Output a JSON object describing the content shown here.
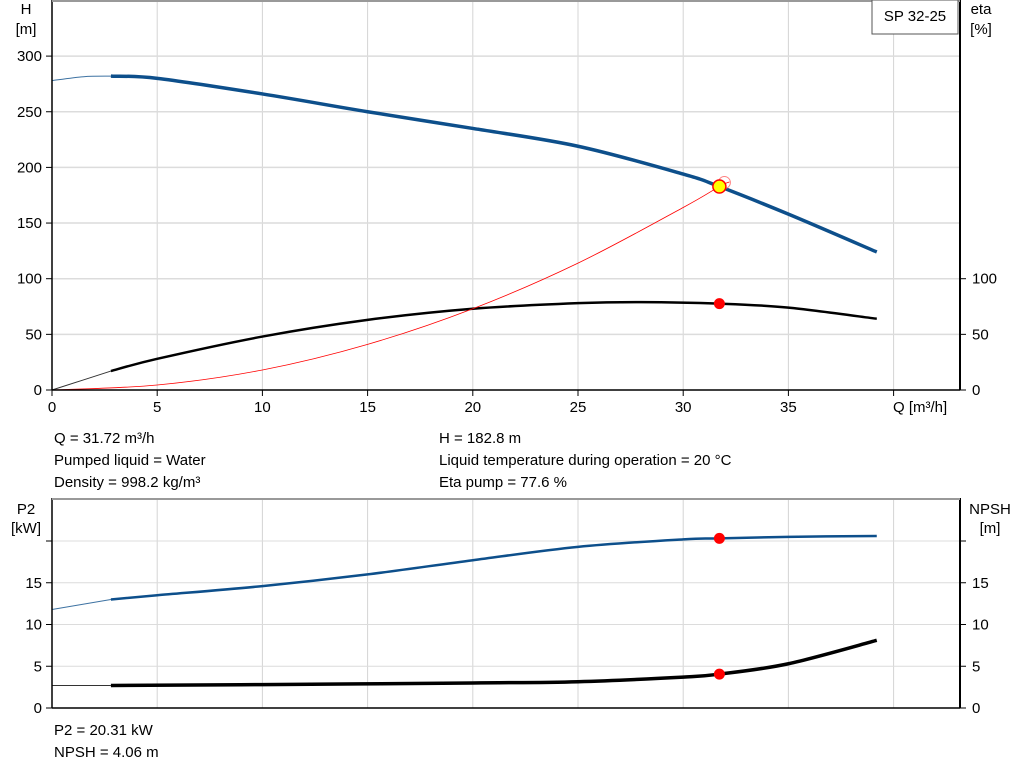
{
  "chart_data": [
    {
      "type": "line",
      "title": "SP 32-25",
      "xlabel": "Q [m³/h]",
      "ylabel": "H",
      "ylabel_unit": "[m]",
      "y2label": "eta",
      "y2label_unit": "[%]",
      "xlim": [
        0,
        43
      ],
      "ylim": [
        0,
        350
      ],
      "y2lim": [
        0,
        350
      ],
      "x_ticks": [
        "0",
        "5",
        "10",
        "15",
        "20",
        "25",
        "30",
        "35"
      ],
      "y_ticks": [
        "0",
        "50",
        "100",
        "150",
        "200",
        "250",
        "300"
      ],
      "y2_ticks": [
        "0",
        "50",
        "100"
      ],
      "grid": true,
      "series": [
        {
          "key": "H",
          "color": "#0d4f8b",
          "x": [
            0,
            1.5,
            2.8,
            5,
            10,
            15,
            20,
            25,
            30,
            31.72,
            35,
            39.2
          ],
          "y": [
            278,
            281.5,
            282,
            280,
            266,
            250,
            235,
            219,
            194,
            182.8,
            158,
            124
          ],
          "thick_from": 2.8
        },
        {
          "key": "eta",
          "color": "#000000",
          "x": [
            0,
            2.8,
            5,
            10,
            15,
            20,
            25,
            28,
            31.72,
            35,
            39.2
          ],
          "y": [
            0,
            17,
            28,
            48,
            63,
            73,
            78,
            79,
            77.6,
            74,
            64
          ],
          "thick_from": 2.8
        },
        {
          "key": "system",
          "color": "#ff0000",
          "x": [
            0,
            5,
            10,
            15,
            20,
            25,
            30,
            31.72,
            32.2
          ],
          "y": [
            0,
            4.5,
            18,
            41,
            73,
            114,
            164,
            182.8,
            187
          ]
        }
      ],
      "operating_points": [
        {
          "x": 31.72,
          "y": 182.8,
          "color": "#ffff00",
          "stroke": "#ff0000"
        },
        {
          "x": 31.72,
          "y": 77.6,
          "color": "#ff0000"
        }
      ]
    },
    {
      "type": "line",
      "ylabel": "P2",
      "ylabel_unit": "[kW]",
      "y2label": "NPSH",
      "y2label_unit": "[m]",
      "xlim": [
        0,
        43
      ],
      "ylim": [
        0,
        25
      ],
      "y_ticks": [
        "0",
        "5",
        "10",
        "15"
      ],
      "y2_ticks": [
        "0",
        "5",
        "10",
        "15"
      ],
      "grid": true,
      "series": [
        {
          "key": "P2",
          "color": "#0d4f8b",
          "x": [
            0,
            2.8,
            5,
            10,
            15,
            20,
            25,
            30,
            31.72,
            35,
            39.2
          ],
          "y": [
            11.8,
            13,
            13.5,
            14.6,
            16,
            17.7,
            19.3,
            20.2,
            20.31,
            20.5,
            20.6
          ],
          "thick_from": 2.8
        },
        {
          "key": "NPSH",
          "color": "#000000",
          "x": [
            0,
            2.8,
            10,
            20,
            25,
            30,
            31.72,
            35,
            39.2
          ],
          "y": [
            2.7,
            2.7,
            2.8,
            3.0,
            3.15,
            3.7,
            4.06,
            5.3,
            8.1
          ],
          "thick_from": 2.8
        }
      ],
      "operating_points": [
        {
          "x": 31.72,
          "y": 20.31,
          "color": "#ff0000"
        },
        {
          "x": 31.72,
          "y": 4.06,
          "color": "#ff0000"
        }
      ]
    }
  ],
  "info_top": {
    "q": "Q = 31.72 m³/h",
    "liquid": "Pumped liquid = Water",
    "density": "Density = 998.2 kg/m³",
    "h": "H = 182.8 m",
    "temp": "Liquid temperature during operation = 20 °C",
    "eta": "Eta pump = 77.6 %"
  },
  "info_bottom": {
    "p2": "P2 = 20.31 kW",
    "npsh": "NPSH = 4.06 m"
  }
}
